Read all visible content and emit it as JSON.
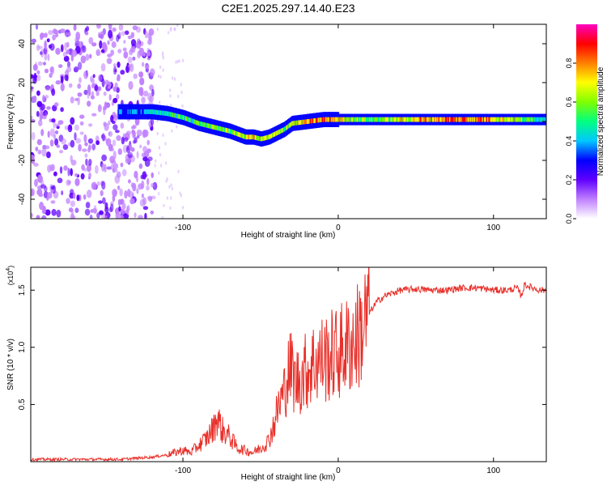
{
  "title": "C2E1.2025.297.14.40.E23",
  "chart_data": [
    {
      "type": "heatmap",
      "xlabel": "Height of straight line (km)",
      "ylabel": "Frequency (Hz)",
      "xlim": [
        -198,
        134
      ],
      "ylim": [
        -50,
        50
      ],
      "xticks": [
        -100,
        0,
        100
      ],
      "yticks": [
        -40,
        -20,
        0,
        20,
        40
      ],
      "xtick_labels": [
        "-100",
        "0",
        "100"
      ],
      "ytick_labels": [
        "-40",
        "-20",
        "0",
        "20",
        "40"
      ],
      "colorbar": {
        "label": "Normalized spectral amplitude",
        "range": [
          0,
          1
        ],
        "ticks": [
          0.0,
          0.2,
          0.4,
          0.6,
          0.8
        ],
        "tick_labels": [
          "0.0",
          "0.2",
          "0.4",
          "0.6",
          "0.8"
        ],
        "colors": [
          "#ffffff",
          "#c080ff",
          "#6000ff",
          "#0000ff",
          "#00c8ff",
          "#00ff80",
          "#80ff00",
          "#ffff00",
          "#ff8000",
          "#ff0000",
          "#ff00c0"
        ]
      },
      "ridge": {
        "description": "dominant frequency ridge",
        "x": [
          -142,
          -130,
          -120,
          -110,
          -100,
          -90,
          -80,
          -70,
          -60,
          -55,
          -50,
          -45,
          -40,
          -35,
          -30,
          -20,
          -10,
          0,
          20,
          40,
          60,
          80,
          100,
          120,
          134
        ],
        "y": [
          5,
          5,
          5,
          4,
          2,
          -1,
          -3,
          -5,
          -8,
          -8,
          -9,
          -8,
          -6,
          -4,
          -1,
          0,
          1,
          1,
          1,
          1,
          1,
          1,
          1,
          1,
          1
        ],
        "amplitude": [
          0.35,
          0.4,
          0.45,
          0.5,
          0.55,
          0.6,
          0.6,
          0.65,
          0.7,
          0.75,
          0.7,
          0.7,
          0.65,
          0.65,
          0.7,
          0.8,
          0.85,
          0.8,
          0.6,
          0.7,
          0.85,
          0.9,
          0.85,
          0.6,
          0.5
        ]
      },
      "noise_region_x": [
        -198,
        -118
      ]
    },
    {
      "type": "line",
      "xlabel": "Height of straight line (km)",
      "ylabel": "SNR (10 * v/v)",
      "y_multiplier": "(x10",
      "y_exponent": "4",
      "y_multiplier_close": ")",
      "xlim": [
        -198,
        134
      ],
      "ylim": [
        0,
        1.7
      ],
      "xticks": [
        -100,
        0,
        100
      ],
      "yticks": [
        0.5,
        1.0,
        1.5
      ],
      "xtick_labels": [
        "-100",
        "0",
        "100"
      ],
      "ytick_labels": [
        "0.5",
        "1.0",
        "1.5"
      ],
      "line_color": "#e8302a",
      "series": [
        {
          "name": "SNR",
          "x": [
            -198,
            -180,
            -160,
            -140,
            -130,
            -120,
            -110,
            -100,
            -95,
            -90,
            -85,
            -80,
            -78,
            -75,
            -70,
            -65,
            -60,
            -55,
            -50,
            -45,
            -42,
            -40,
            -38,
            -35,
            -33,
            -30,
            -28,
            -25,
            -22,
            -20,
            -15,
            -10,
            -5,
            0,
            5,
            10,
            15,
            20,
            25,
            30,
            40,
            50,
            60,
            70,
            80,
            90,
            100,
            110,
            115,
            118,
            120,
            125,
            130,
            134
          ],
          "y": [
            0.02,
            0.02,
            0.02,
            0.02,
            0.03,
            0.04,
            0.06,
            0.1,
            0.08,
            0.14,
            0.2,
            0.3,
            0.4,
            0.28,
            0.22,
            0.12,
            0.1,
            0.08,
            0.12,
            0.18,
            0.3,
            0.4,
            0.5,
            0.6,
            0.75,
            0.82,
            0.7,
            0.72,
            0.78,
            0.8,
            0.88,
            0.9,
            0.92,
            0.95,
            1.0,
            1.05,
            1.15,
            1.3,
            1.4,
            1.45,
            1.5,
            1.51,
            1.5,
            1.5,
            1.52,
            1.52,
            1.5,
            1.5,
            1.52,
            1.45,
            1.55,
            1.52,
            1.5,
            1.5
          ]
        }
      ]
    }
  ]
}
